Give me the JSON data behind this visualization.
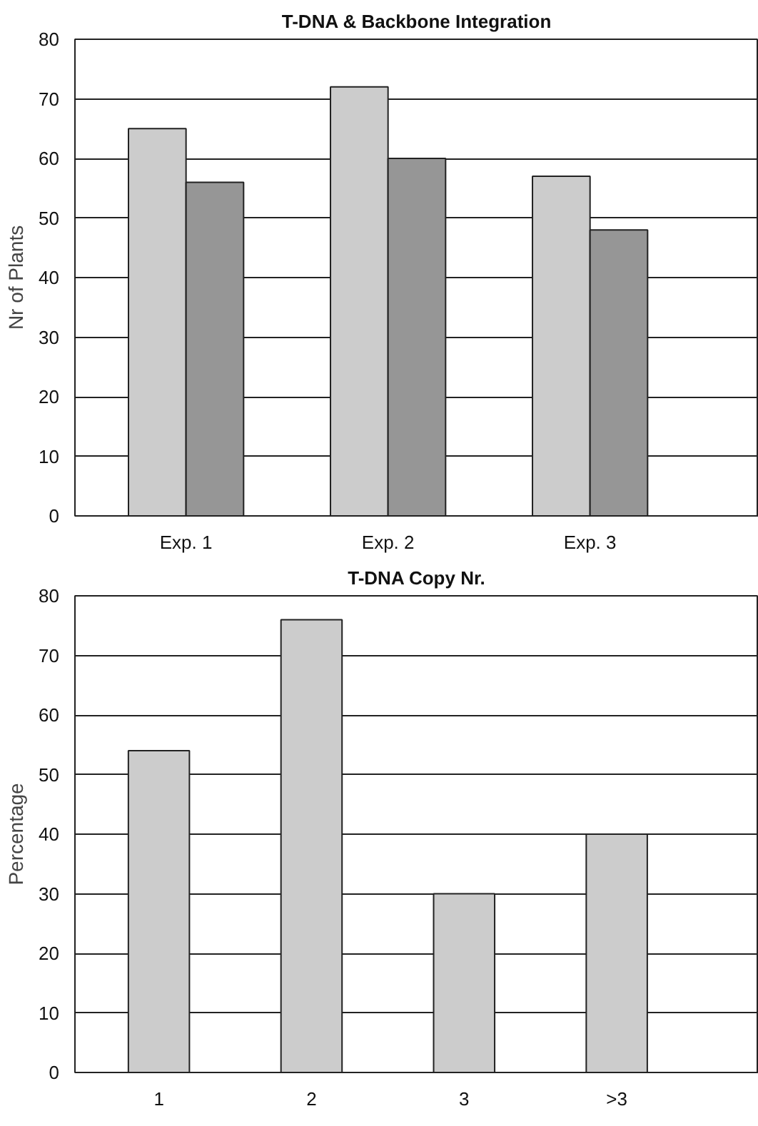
{
  "chart_data": [
    {
      "type": "bar",
      "title": "T-DNA & Backbone Integration",
      "ylabel": "Nr of Plants",
      "categories": [
        "Exp. 1",
        "Exp. 2",
        "Exp. 3"
      ],
      "series": [
        {
          "color": "#cccccc",
          "values": [
            65,
            72,
            57
          ]
        },
        {
          "color": "#969696",
          "values": [
            56,
            60,
            48
          ]
        }
      ],
      "ylim": [
        0,
        80
      ],
      "yticks": [
        0,
        10,
        20,
        30,
        40,
        50,
        60,
        70,
        80
      ],
      "grid": "y"
    },
    {
      "type": "bar",
      "title": "T-DNA Copy Nr.",
      "ylabel": "Percentage",
      "categories": [
        "1",
        "2",
        "3",
        ">3"
      ],
      "series": [
        {
          "color": "#cccccc",
          "values": [
            54,
            76,
            30,
            40
          ]
        }
      ],
      "ylim": [
        0,
        80
      ],
      "yticks": [
        0,
        10,
        20,
        30,
        40,
        50,
        60,
        70,
        80
      ],
      "grid": "y"
    }
  ]
}
